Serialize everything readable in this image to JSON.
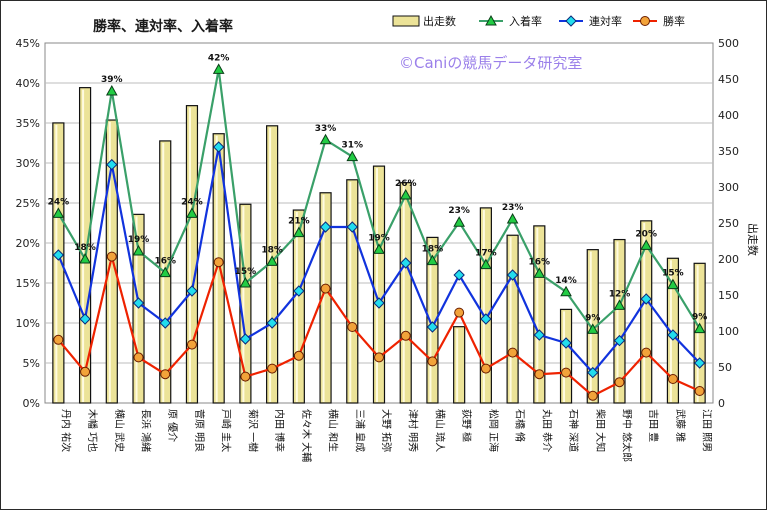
{
  "chart_data": {
    "type": "bar",
    "title": "勝率、連対率、入着率",
    "watermark": "©Caniの競馬データ研究室",
    "y2label": "出走数",
    "ylim": [
      0,
      45
    ],
    "y2lim": [
      0,
      500
    ],
    "yticks": [
      "0%",
      "5%",
      "10%",
      "15%",
      "20%",
      "25%",
      "30%",
      "35%",
      "40%",
      "45%"
    ],
    "y2ticks": [
      "0",
      "50",
      "100",
      "150",
      "200",
      "250",
      "300",
      "350",
      "400",
      "450",
      "500"
    ],
    "grid": "horizontal",
    "legend_position": "top-right",
    "categories": [
      "丹内 祐次",
      "木幡 巧也",
      "横山 武史",
      "長浜 鴻緒",
      "原 優介",
      "菅原 明良",
      "戸崎 圭太",
      "菊沢 一樹",
      "内田 博幸",
      "佐々木 大輔",
      "横山 和生",
      "三浦 皇成",
      "大野 拓弥",
      "津村 明秀",
      "横山 琉人",
      "荻野 極",
      "松岡 正海",
      "石橋 脩",
      "丸田 恭介",
      "石神 深道",
      "柴田 大知",
      "野中 悠太郎",
      "吉田 豊",
      "武藤 雅",
      "江田 照男"
    ],
    "series": [
      {
        "name": "出走数",
        "kind": "bar",
        "axis": "right",
        "color": "#ece398",
        "values": [
          389,
          438,
          393,
          262,
          364,
          413,
          374,
          276,
          385,
          268,
          292,
          310,
          329,
          306,
          230,
          106,
          271,
          233,
          246,
          130,
          213,
          227,
          253,
          201,
          194
        ]
      },
      {
        "name": "入着率",
        "kind": "line",
        "axis": "left",
        "color": "#3aa069",
        "marker": "triangle",
        "labels": [
          "24%",
          "18%",
          "39%",
          "19%",
          "16%",
          "24%",
          "42%",
          "15%",
          "18%",
          "21%",
          "33%",
          "31%",
          "19%",
          "26%",
          "18%",
          "23%",
          "17%",
          "23%",
          "16%",
          "14%",
          "9%",
          "12%",
          "20%",
          "15%",
          "9%"
        ],
        "values": [
          23.7,
          18.0,
          39.0,
          19.0,
          16.3,
          23.7,
          41.7,
          15.0,
          17.7,
          21.3,
          32.9,
          30.8,
          19.2,
          26.0,
          17.8,
          22.6,
          17.3,
          23.0,
          16.2,
          13.9,
          9.2,
          12.2,
          19.7,
          14.8,
          9.3
        ]
      },
      {
        "name": "連対率",
        "kind": "line",
        "axis": "left",
        "color": "#1133dd",
        "marker": "diamond",
        "values": [
          18.5,
          10.5,
          29.8,
          12.5,
          10.0,
          14.0,
          32.0,
          8.0,
          10.0,
          14.0,
          22.0,
          22.0,
          12.5,
          17.5,
          9.5,
          16.0,
          10.5,
          16.0,
          8.5,
          7.5,
          3.8,
          7.8,
          13.0,
          8.5,
          5.0
        ]
      },
      {
        "name": "勝率",
        "kind": "line",
        "axis": "left",
        "color": "#ee2200",
        "marker": "circle",
        "values": [
          7.9,
          3.9,
          18.3,
          5.7,
          3.6,
          7.3,
          17.6,
          3.3,
          4.3,
          5.9,
          14.3,
          9.5,
          5.7,
          8.4,
          5.2,
          11.3,
          4.3,
          6.3,
          3.6,
          3.8,
          0.9,
          2.6,
          6.3,
          3.0,
          1.5
        ]
      }
    ]
  }
}
